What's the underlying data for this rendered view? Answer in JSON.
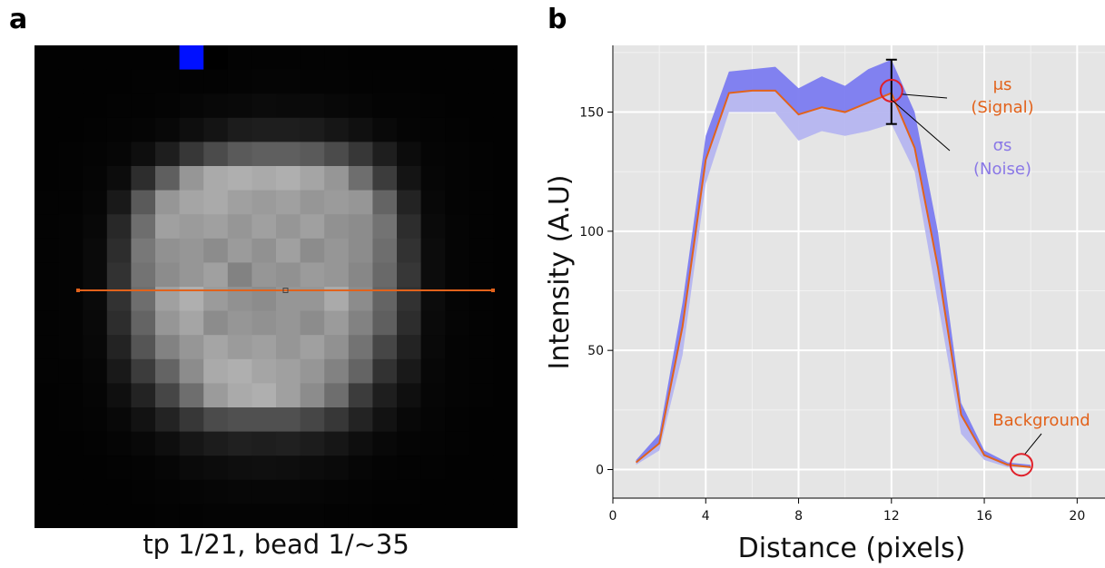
{
  "panels": {
    "a": "a",
    "b": "b"
  },
  "image_panel": {
    "caption": "tp 1/21, bead 1/~35",
    "grid_size": 20,
    "marker_color": "#0010ff",
    "line_color": "#e2621b",
    "pixels": [
      [
        2,
        2,
        2,
        2,
        2,
        2,
        3,
        0,
        3,
        3,
        3,
        3,
        3,
        2,
        2,
        2,
        2,
        2,
        2,
        2
      ],
      [
        2,
        2,
        2,
        2,
        3,
        3,
        3,
        3,
        4,
        5,
        5,
        4,
        4,
        3,
        3,
        3,
        2,
        2,
        2,
        2
      ],
      [
        2,
        2,
        2,
        3,
        3,
        4,
        6,
        8,
        9,
        11,
        10,
        10,
        8,
        6,
        4,
        4,
        3,
        2,
        2,
        2
      ],
      [
        2,
        2,
        3,
        4,
        5,
        8,
        14,
        20,
        28,
        30,
        30,
        28,
        22,
        16,
        9,
        5,
        4,
        3,
        2,
        2
      ],
      [
        2,
        3,
        4,
        6,
        14,
        30,
        55,
        75,
        90,
        95,
        95,
        90,
        75,
        55,
        30,
        12,
        5,
        4,
        3,
        2
      ],
      [
        2,
        3,
        5,
        12,
        45,
        95,
        150,
        170,
        175,
        170,
        175,
        165,
        150,
        110,
        60,
        20,
        6,
        4,
        3,
        2
      ],
      [
        3,
        3,
        6,
        25,
        90,
        150,
        165,
        170,
        160,
        155,
        160,
        150,
        155,
        150,
        100,
        35,
        8,
        4,
        3,
        2
      ],
      [
        3,
        4,
        8,
        40,
        110,
        160,
        155,
        160,
        150,
        160,
        150,
        160,
        145,
        140,
        115,
        45,
        10,
        5,
        3,
        2
      ],
      [
        3,
        4,
        10,
        45,
        120,
        145,
        150,
        140,
        155,
        145,
        160,
        140,
        150,
        140,
        110,
        50,
        12,
        5,
        3,
        2
      ],
      [
        3,
        4,
        10,
        50,
        115,
        140,
        150,
        160,
        130,
        150,
        145,
        155,
        150,
        135,
        105,
        55,
        12,
        5,
        3,
        2
      ],
      [
        3,
        4,
        10,
        50,
        110,
        160,
        175,
        155,
        145,
        140,
        150,
        150,
        170,
        140,
        100,
        50,
        12,
        5,
        3,
        2
      ],
      [
        3,
        4,
        9,
        45,
        100,
        150,
        165,
        140,
        150,
        145,
        150,
        140,
        155,
        130,
        95,
        45,
        10,
        5,
        3,
        2
      ],
      [
        3,
        4,
        8,
        35,
        85,
        130,
        150,
        165,
        155,
        160,
        150,
        160,
        145,
        115,
        70,
        35,
        9,
        4,
        3,
        2
      ],
      [
        3,
        3,
        6,
        25,
        60,
        100,
        140,
        170,
        175,
        165,
        160,
        150,
        130,
        100,
        50,
        25,
        7,
        4,
        3,
        2
      ],
      [
        2,
        3,
        5,
        15,
        35,
        70,
        110,
        155,
        170,
        175,
        160,
        140,
        110,
        60,
        30,
        15,
        6,
        4,
        3,
        2
      ],
      [
        2,
        3,
        4,
        8,
        18,
        35,
        55,
        75,
        80,
        80,
        80,
        70,
        55,
        35,
        18,
        8,
        5,
        3,
        2,
        2
      ],
      [
        2,
        2,
        3,
        5,
        8,
        14,
        22,
        28,
        32,
        30,
        32,
        28,
        22,
        14,
        8,
        5,
        4,
        3,
        2,
        2
      ],
      [
        2,
        2,
        2,
        3,
        4,
        6,
        10,
        12,
        14,
        15,
        14,
        12,
        10,
        6,
        4,
        3,
        3,
        2,
        2,
        2
      ],
      [
        2,
        2,
        2,
        2,
        3,
        4,
        5,
        6,
        7,
        7,
        7,
        6,
        5,
        4,
        3,
        3,
        2,
        2,
        2,
        2
      ],
      [
        2,
        2,
        2,
        2,
        2,
        3,
        3,
        4,
        4,
        4,
        4,
        4,
        3,
        3,
        2,
        2,
        2,
        2,
        2,
        2
      ]
    ]
  },
  "chart_data": {
    "type": "line",
    "xlabel": "Distance (pixels)",
    "ylabel": "Intensity (A.U)",
    "xlim": [
      0,
      21.2
    ],
    "ylim": [
      -12,
      178
    ],
    "xticks": [
      0,
      4,
      8,
      12,
      16,
      20
    ],
    "yticks": [
      0,
      50,
      100,
      150
    ],
    "grid": true,
    "background": "#e5e5e5",
    "mean_color": "#e2621b",
    "band_color": "#7b7bf0",
    "band_light_color": "#b5b5f0",
    "x": [
      1,
      2,
      3,
      4,
      5,
      6,
      7,
      8,
      9,
      10,
      11,
      12,
      13,
      14,
      15,
      16,
      17,
      18
    ],
    "mean": [
      3,
      11,
      60,
      130,
      158,
      159,
      159,
      149,
      152,
      150,
      154,
      158,
      135,
      85,
      23,
      6,
      2,
      1
    ],
    "upper": [
      4,
      15,
      70,
      140,
      167,
      168,
      169,
      160,
      165,
      161,
      168,
      172,
      150,
      100,
      28,
      8,
      3,
      2
    ],
    "lower": [
      2,
      8,
      48,
      120,
      150,
      150,
      150,
      138,
      142,
      140,
      142,
      145,
      125,
      70,
      15,
      4,
      1,
      1
    ],
    "error_bar": {
      "x": 12,
      "mean": 158,
      "low": 145,
      "high": 172
    },
    "markers": [
      {
        "x": 12,
        "y": 159
      },
      {
        "x": 17.6,
        "y": 2
      }
    ],
    "annotations": {
      "signal_symbol": "μs",
      "signal_label": "(Signal)",
      "noise_symbol": "σs",
      "noise_label": "(Noise)",
      "background_label": "Background"
    }
  }
}
